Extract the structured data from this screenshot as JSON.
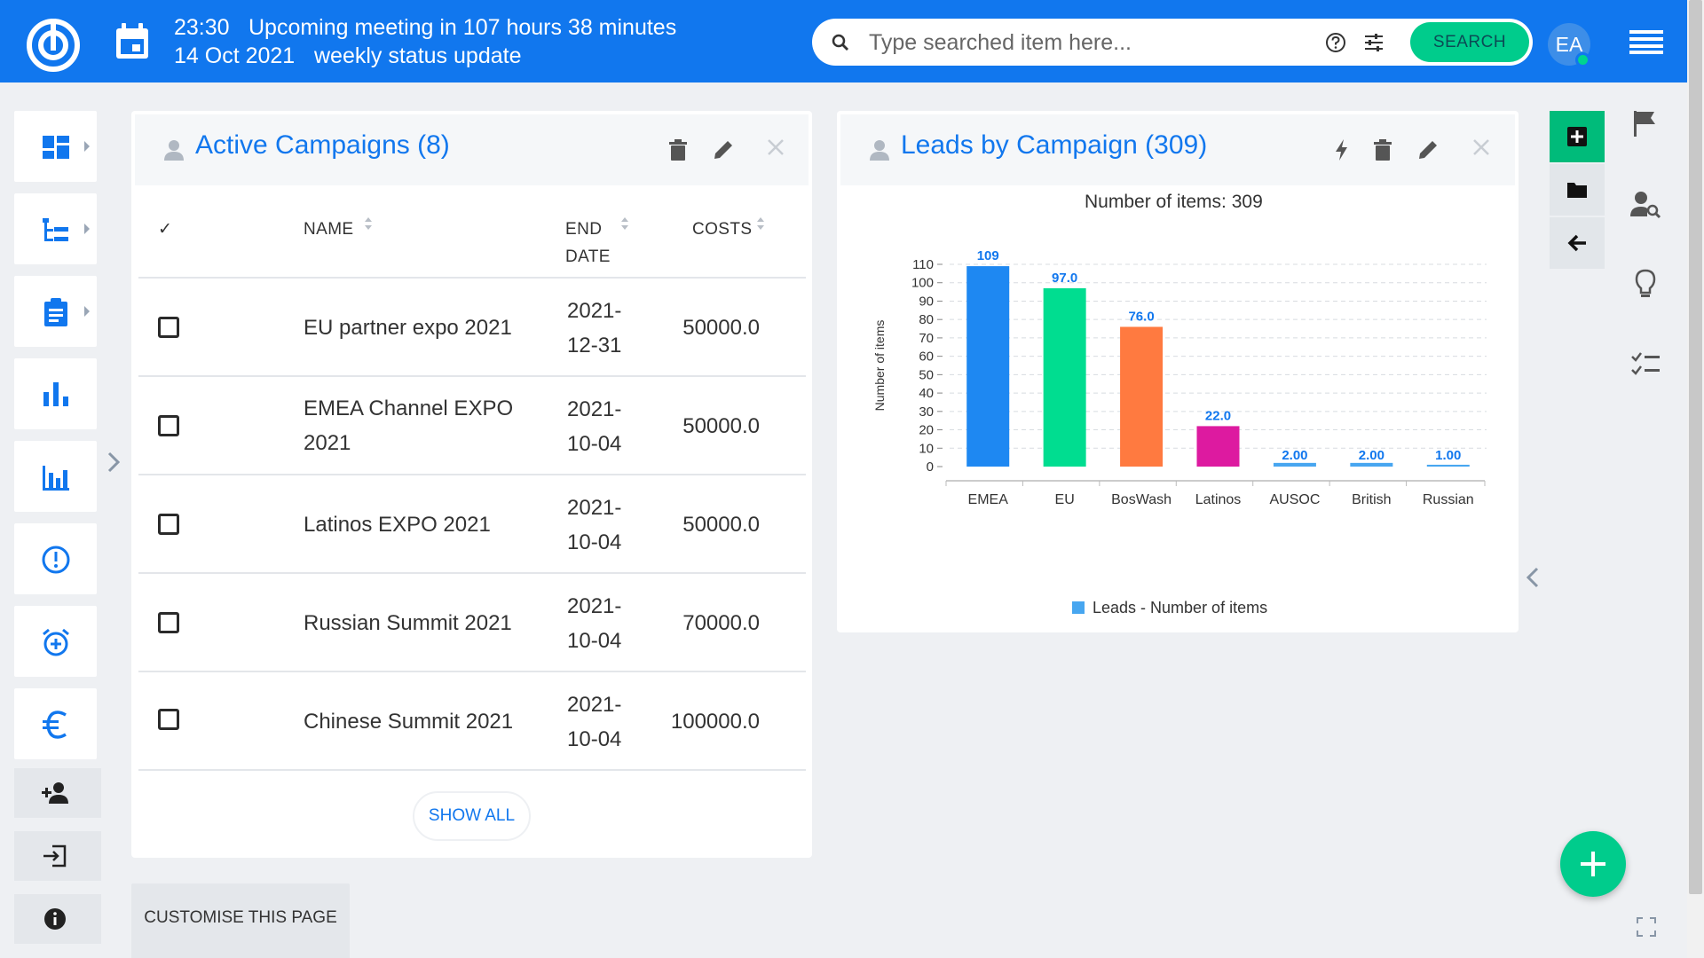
{
  "topbar": {
    "meeting_time": "23:30",
    "meeting_text": "Upcoming meeting in 107 hours 38 minutes",
    "meeting_date": "14 Oct 2021",
    "meeting_subject": "weekly status update",
    "search_placeholder": "Type searched item here...",
    "search_button": "SEARCH",
    "avatar_initials": "EA"
  },
  "left_nav": {
    "items": [
      "dashboard-icon",
      "hierarchy-icon",
      "clipboard-icon",
      "bar-chart-icon",
      "analytics-icon",
      "alert-icon",
      "alarm-icon",
      "euro-icon"
    ],
    "small_items": [
      "add-user-icon",
      "login-icon",
      "info-icon"
    ]
  },
  "campaigns_widget": {
    "title": "Active Campaigns (8)",
    "columns": {
      "check": "✓",
      "name": "NAME",
      "end_date_1": "END",
      "end_date_2": "DATE",
      "costs": "COSTS"
    },
    "rows": [
      {
        "name_1": "EU partner expo 2021",
        "name_2": "",
        "date_1": "2021-",
        "date_2": "12-31",
        "cost": "50000.0"
      },
      {
        "name_1": "EMEA Channel EXPO",
        "name_2": "2021",
        "date_1": "2021-",
        "date_2": "10-04",
        "cost": "50000.0"
      },
      {
        "name_1": "Latinos EXPO 2021",
        "name_2": "",
        "date_1": "2021-",
        "date_2": "10-04",
        "cost": "50000.0"
      },
      {
        "name_1": "Russian Summit 2021",
        "name_2": "",
        "date_1": "2021-",
        "date_2": "10-04",
        "cost": "70000.0"
      },
      {
        "name_1": "Chinese Summit 2021",
        "name_2": "",
        "date_1": "2021-",
        "date_2": "10-04",
        "cost": "100000.0"
      }
    ],
    "show_all": "SHOW ALL"
  },
  "leads_widget": {
    "title": "Leads by Campaign (309)",
    "chart_title": "Number of items: 309",
    "legend": "Leads - Number of items"
  },
  "customise_label": "CUSTOMISE THIS PAGE",
  "chart_data": {
    "type": "bar",
    "title": "Number of items: 309",
    "xlabel": "",
    "ylabel": "Number of items",
    "categories": [
      "EMEA",
      "EU",
      "BosWash",
      "Latinos",
      "AUSOC",
      "British",
      "Russian"
    ],
    "series": [
      {
        "name": "Leads - Number of items",
        "values": [
          109,
          97,
          76,
          22,
          2,
          2,
          1
        ]
      }
    ],
    "data_labels": [
      "109",
      "97.0",
      "76.0",
      "22.0",
      "2.00",
      "2.00",
      "1.00"
    ],
    "bar_colors": [
      "#1e88f2",
      "#00dd90",
      "#ff7a40",
      "#dd1aa0",
      "#47a6f0",
      "#47a6f0",
      "#47a6f0"
    ],
    "yticks": [
      0,
      10,
      20,
      30,
      40,
      50,
      60,
      70,
      80,
      90,
      100,
      110
    ],
    "ylim": [
      0,
      110
    ],
    "grid": true,
    "legend_position": "bottom"
  },
  "colors": {
    "brand_blue": "#1177ee",
    "accent_green": "#00cc8c",
    "label_blue": "#1177ee"
  }
}
